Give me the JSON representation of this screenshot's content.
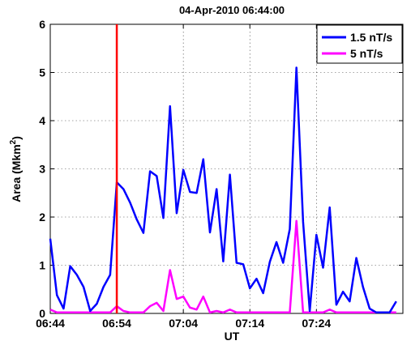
{
  "chart_data": {
    "type": "line",
    "title": "04-Apr-2010 06:44:00",
    "xlabel": "UT",
    "ylabel": "Area (Mkm",
    "ylabel_sup": "2",
    "ylabel_end": ")",
    "xlim": [
      0,
      53
    ],
    "ylim": [
      0,
      6
    ],
    "yticks": [
      0,
      1,
      2,
      3,
      4,
      5,
      6
    ],
    "xticks": [
      {
        "value": 0,
        "label": "06:44"
      },
      {
        "value": 10,
        "label": "06:54"
      },
      {
        "value": 20,
        "label": "07:04"
      },
      {
        "value": 30,
        "label": "07:14"
      },
      {
        "value": 40,
        "label": "07:24"
      }
    ],
    "grid": true,
    "legend_position": "top-right",
    "marker_line": {
      "x": 10,
      "color": "#ff0000"
    },
    "series": [
      {
        "name": "1.5 nT/s",
        "color": "#0000ff",
        "x": [
          0,
          1,
          2,
          3,
          4,
          5,
          6,
          7,
          8,
          9,
          10,
          11,
          12,
          13,
          14,
          15,
          16,
          17,
          18,
          19,
          20,
          21,
          22,
          23,
          24,
          25,
          26,
          27,
          28,
          29,
          30,
          31,
          32,
          33,
          34,
          35,
          36,
          37,
          38,
          39,
          40,
          41,
          42,
          43,
          44,
          45,
          46,
          47,
          48,
          49,
          50,
          51,
          52
        ],
        "values": [
          1.55,
          0.38,
          0.1,
          0.98,
          0.8,
          0.55,
          0.05,
          0.2,
          0.55,
          0.8,
          2.72,
          2.58,
          2.3,
          1.95,
          1.67,
          2.95,
          2.85,
          1.98,
          4.3,
          2.08,
          2.98,
          2.52,
          2.5,
          3.2,
          1.68,
          2.58,
          1.08,
          2.88,
          1.05,
          1.02,
          0.52,
          0.72,
          0.42,
          1.07,
          1.48,
          1.05,
          1.75,
          5.1,
          1.9,
          0.05,
          1.63,
          0.95,
          2.2,
          0.18,
          0.45,
          0.25,
          1.15,
          0.55,
          0.1,
          0.02,
          0.02,
          0.02,
          0.25
        ]
      },
      {
        "name": "5 nT/s",
        "color": "#ff00ff",
        "x": [
          0,
          1,
          2,
          3,
          4,
          5,
          6,
          7,
          8,
          9,
          10,
          11,
          12,
          13,
          14,
          15,
          16,
          17,
          18,
          19,
          20,
          21,
          22,
          23,
          24,
          25,
          26,
          27,
          28,
          29,
          30,
          31,
          32,
          33,
          34,
          35,
          36,
          37,
          38,
          39,
          40,
          41,
          42,
          43,
          44,
          45,
          46,
          47,
          48,
          49,
          50,
          51,
          52
        ],
        "values": [
          0.08,
          0.02,
          0.02,
          0.02,
          0.02,
          0.02,
          0.02,
          0.02,
          0.02,
          0.02,
          0.15,
          0.05,
          0.02,
          0.02,
          0.02,
          0.15,
          0.22,
          0.05,
          0.9,
          0.3,
          0.35,
          0.12,
          0.08,
          0.35,
          0.02,
          0.05,
          0.02,
          0.08,
          0.02,
          0.02,
          0.02,
          0.02,
          0.02,
          0.02,
          0.02,
          0.02,
          0.02,
          1.92,
          0.02,
          0.02,
          0.02,
          0.02,
          0.08,
          0.02,
          0.02,
          0.02,
          0.02,
          0.02,
          0.02,
          0.02,
          0.02,
          0.02,
          0.02
        ]
      }
    ]
  }
}
